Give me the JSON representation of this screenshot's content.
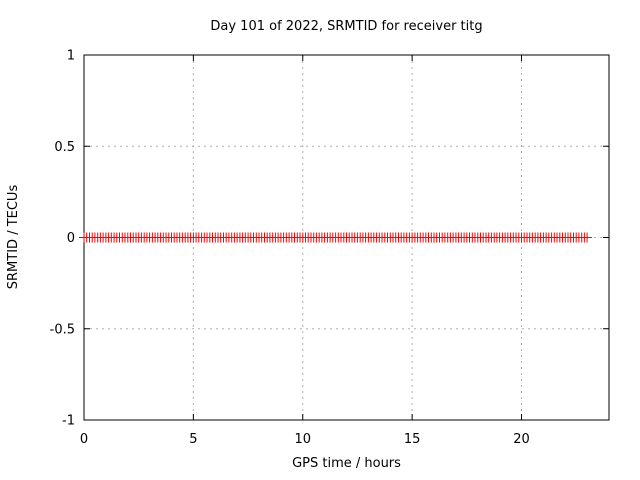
{
  "figure": {
    "background_color": "#ffffff",
    "text_color": "#000000"
  },
  "chart_data": {
    "type": "scatter",
    "title": "Day 101 of 2022, SRMTID for receiver titg",
    "xlabel": "GPS time / hours",
    "ylabel": "SRMTID / TECUs",
    "xlim": [
      0,
      24
    ],
    "ylim": [
      -1,
      1
    ],
    "x_ticks": [
      0,
      5,
      10,
      15,
      20
    ],
    "y_ticks": [
      -1,
      -0.5,
      0,
      0.5,
      1
    ],
    "grid": true,
    "grid_style": "dashed",
    "grid_color": "#b0b0b0",
    "axis_color": "#000000",
    "legend": "none",
    "series": [
      {
        "name": "SRMTID",
        "marker": "plus",
        "color": "#ff0000",
        "x_start": 0,
        "x_end": 23,
        "x_step": 0.125,
        "y_constant": 0,
        "description": "flat line of plus markers at y = 0 TECUs spanning 0 to 23 hours"
      }
    ]
  }
}
